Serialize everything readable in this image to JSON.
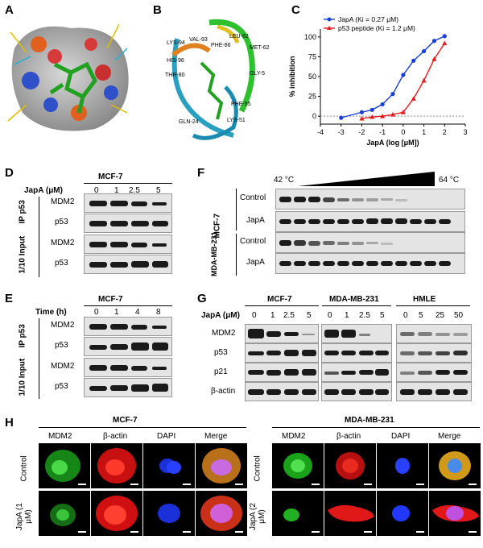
{
  "panels": {
    "a": "A",
    "b": "B",
    "c": "C",
    "d": "D",
    "e": "E",
    "f": "F",
    "g": "G",
    "h": "H"
  },
  "panel_b": {
    "residues": [
      "LYS-94",
      "VAL-93",
      "LEU-82",
      "HIS-96",
      "PHE-86",
      "MET-62",
      "THR-80",
      "GLY-5",
      "PHE-55",
      "GLN-24",
      "LYS-51"
    ]
  },
  "chart_data": {
    "type": "line",
    "xlabel": "JapA (log [μM])",
    "ylabel": "% inhibition",
    "xlim": [
      -4,
      3
    ],
    "ylim": [
      -10,
      110
    ],
    "xticks": [
      -4,
      -3,
      -2,
      -1,
      0,
      1,
      2,
      3
    ],
    "yticks": [
      0,
      25,
      50,
      75,
      100
    ],
    "legend_placement": "top-left",
    "series": [
      {
        "name": "JapA (Ki = 0.27 μM)",
        "color": "#1a3fd9",
        "marker": "circle",
        "x": [
          -3,
          -2,
          -1.5,
          -1,
          -0.5,
          0,
          0.5,
          1,
          1.5,
          2
        ],
        "y": [
          -2,
          5,
          8,
          15,
          28,
          52,
          70,
          82,
          95,
          101
        ]
      },
      {
        "name": "p53 peptide (Ki = 1.2 μM)",
        "color": "#e41a1c",
        "marker": "triangle",
        "x": [
          -2,
          -1.5,
          -1,
          -0.5,
          0,
          0.5,
          1,
          1.5,
          2
        ],
        "y": [
          -3,
          -1,
          0,
          2,
          5,
          22,
          45,
          72,
          92
        ]
      }
    ]
  },
  "panel_d": {
    "treatment_label": "JapA (μM)",
    "cell_line": "MCF-7",
    "doses": [
      "0",
      "1",
      "2.5",
      "5"
    ],
    "ip_label": "IP p53",
    "input_label": "1/10 Input",
    "proteins": [
      "MDM2",
      "p53",
      "MDM2",
      "p53"
    ]
  },
  "panel_e": {
    "treatment_label": "Time (h)",
    "cell_line": "MCF-7",
    "times": [
      "0",
      "1",
      "4",
      "8"
    ],
    "ip_label": "IP p53",
    "input_label": "1/10 Input",
    "proteins": [
      "MDM2",
      "p53",
      "MDM2",
      "p53"
    ]
  },
  "panel_f": {
    "temp_start": "42 °C",
    "temp_end": "64 °C",
    "row_groups": [
      "MCF-7",
      "MDA-MB-231"
    ],
    "row_labels": [
      "Control",
      "JapA",
      "Control",
      "JapA"
    ]
  },
  "panel_g": {
    "treatment_label": "JapA (μM)",
    "cell_lines": [
      {
        "name": "MCF-7",
        "doses": [
          "0",
          "1",
          "2.5",
          "5"
        ]
      },
      {
        "name": "MDA-MB-231",
        "doses": [
          "0",
          "1",
          "2.5",
          "5"
        ]
      },
      {
        "name": "HMLE",
        "doses": [
          "0",
          "5",
          "25",
          "50"
        ]
      }
    ],
    "proteins": [
      "MDM2",
      "p53",
      "p21",
      "β-actin"
    ]
  },
  "panel_h": {
    "groups": [
      {
        "cell_line": "MCF-7",
        "columns": [
          "MDM2",
          "β-actin",
          "DAPI",
          "Merge"
        ],
        "rows": [
          "Control",
          "JapA (1 μM)"
        ]
      },
      {
        "cell_line": "MDA-MB-231",
        "columns": [
          "MDM2",
          "β-actin",
          "DAPI",
          "Merge"
        ],
        "rows": [
          "Control",
          "JapA (2 μM)"
        ]
      }
    ]
  },
  "colors": {
    "blot_bg": "#e4e4e4",
    "band": "#1a1a1a",
    "green": "#2ecc40",
    "red": "#ff2a1a",
    "blue": "#2040ff"
  }
}
